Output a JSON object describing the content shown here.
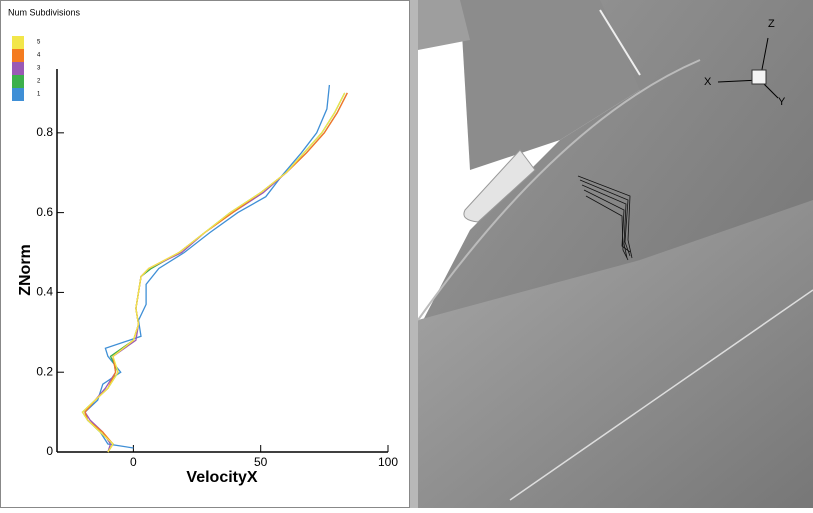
{
  "chart_data": {
    "type": "line",
    "legend_title": "Num Subdivisions",
    "x_label": "VelocityX",
    "y_label": "ZNorm",
    "xlim": [
      -30,
      100
    ],
    "xticks": [
      0,
      50,
      100
    ],
    "ylim": [
      0,
      0.96
    ],
    "yticks": [
      0,
      0.2,
      0.4,
      0.6,
      0.8
    ],
    "series": [
      {
        "name": "5",
        "color": "#f2e64a",
        "x": [
          -10,
          -8,
          -13,
          -18,
          -20,
          -15,
          -10,
          -6,
          -8,
          0,
          2,
          1,
          2,
          3,
          6,
          18,
          28,
          38,
          50,
          60,
          67,
          74,
          79,
          83
        ],
        "values": [
          0,
          0.02,
          0.05,
          0.08,
          0.1,
          0.13,
          0.16,
          0.2,
          0.24,
          0.28,
          0.32,
          0.36,
          0.4,
          0.44,
          0.46,
          0.5,
          0.55,
          0.6,
          0.65,
          0.7,
          0.75,
          0.8,
          0.85,
          0.9
        ]
      },
      {
        "name": "4",
        "color": "#f47b20",
        "x": [
          -10,
          -8,
          -12,
          -18,
          -19,
          -15,
          -10,
          -7,
          -8,
          0,
          2,
          1,
          2,
          3,
          6,
          18,
          28,
          39,
          50,
          60,
          68,
          75,
          80,
          84
        ],
        "values": [
          0,
          0.02,
          0.05,
          0.08,
          0.1,
          0.13,
          0.16,
          0.2,
          0.24,
          0.28,
          0.32,
          0.36,
          0.4,
          0.44,
          0.46,
          0.5,
          0.55,
          0.6,
          0.65,
          0.7,
          0.75,
          0.8,
          0.85,
          0.9
        ]
      },
      {
        "name": "3",
        "color": "#9a59b5",
        "x": [
          -10,
          -9,
          -12,
          -17,
          -19,
          -15,
          -11,
          -7,
          -8,
          1,
          2,
          1,
          2,
          3,
          6,
          19,
          28,
          39,
          51,
          60,
          68,
          75,
          80,
          84
        ],
        "values": [
          0,
          0.02,
          0.05,
          0.08,
          0.1,
          0.13,
          0.16,
          0.2,
          0.24,
          0.28,
          0.32,
          0.36,
          0.4,
          0.44,
          0.46,
          0.5,
          0.55,
          0.6,
          0.65,
          0.7,
          0.75,
          0.8,
          0.85,
          0.9
        ]
      },
      {
        "name": "2",
        "color": "#3cb04c",
        "x": [
          -10,
          -8,
          -13,
          -18,
          -20,
          -15,
          -10,
          -6,
          -9,
          0,
          2,
          1,
          2,
          3,
          7,
          18,
          28,
          38,
          50,
          60,
          67,
          74,
          79,
          83
        ],
        "values": [
          0,
          0.02,
          0.05,
          0.08,
          0.1,
          0.13,
          0.16,
          0.2,
          0.24,
          0.28,
          0.32,
          0.36,
          0.4,
          0.44,
          0.46,
          0.5,
          0.55,
          0.6,
          0.65,
          0.7,
          0.75,
          0.8,
          0.85,
          0.9
        ]
      },
      {
        "name": "1",
        "color": "#3f8fd6",
        "x": [
          0,
          -10,
          -13,
          -18,
          -19,
          -14,
          -12,
          -5,
          -10,
          -11,
          3,
          2,
          5,
          5,
          10,
          20,
          30,
          41,
          52,
          58,
          66,
          72,
          76,
          77
        ],
        "values": [
          0.01,
          0.02,
          0.05,
          0.08,
          0.1,
          0.13,
          0.17,
          0.2,
          0.24,
          0.26,
          0.29,
          0.33,
          0.37,
          0.42,
          0.46,
          0.5,
          0.55,
          0.6,
          0.64,
          0.69,
          0.75,
          0.8,
          0.86,
          0.92
        ]
      }
    ]
  },
  "triad_labels": {
    "x": "X",
    "y": "Y",
    "z": "Z"
  }
}
